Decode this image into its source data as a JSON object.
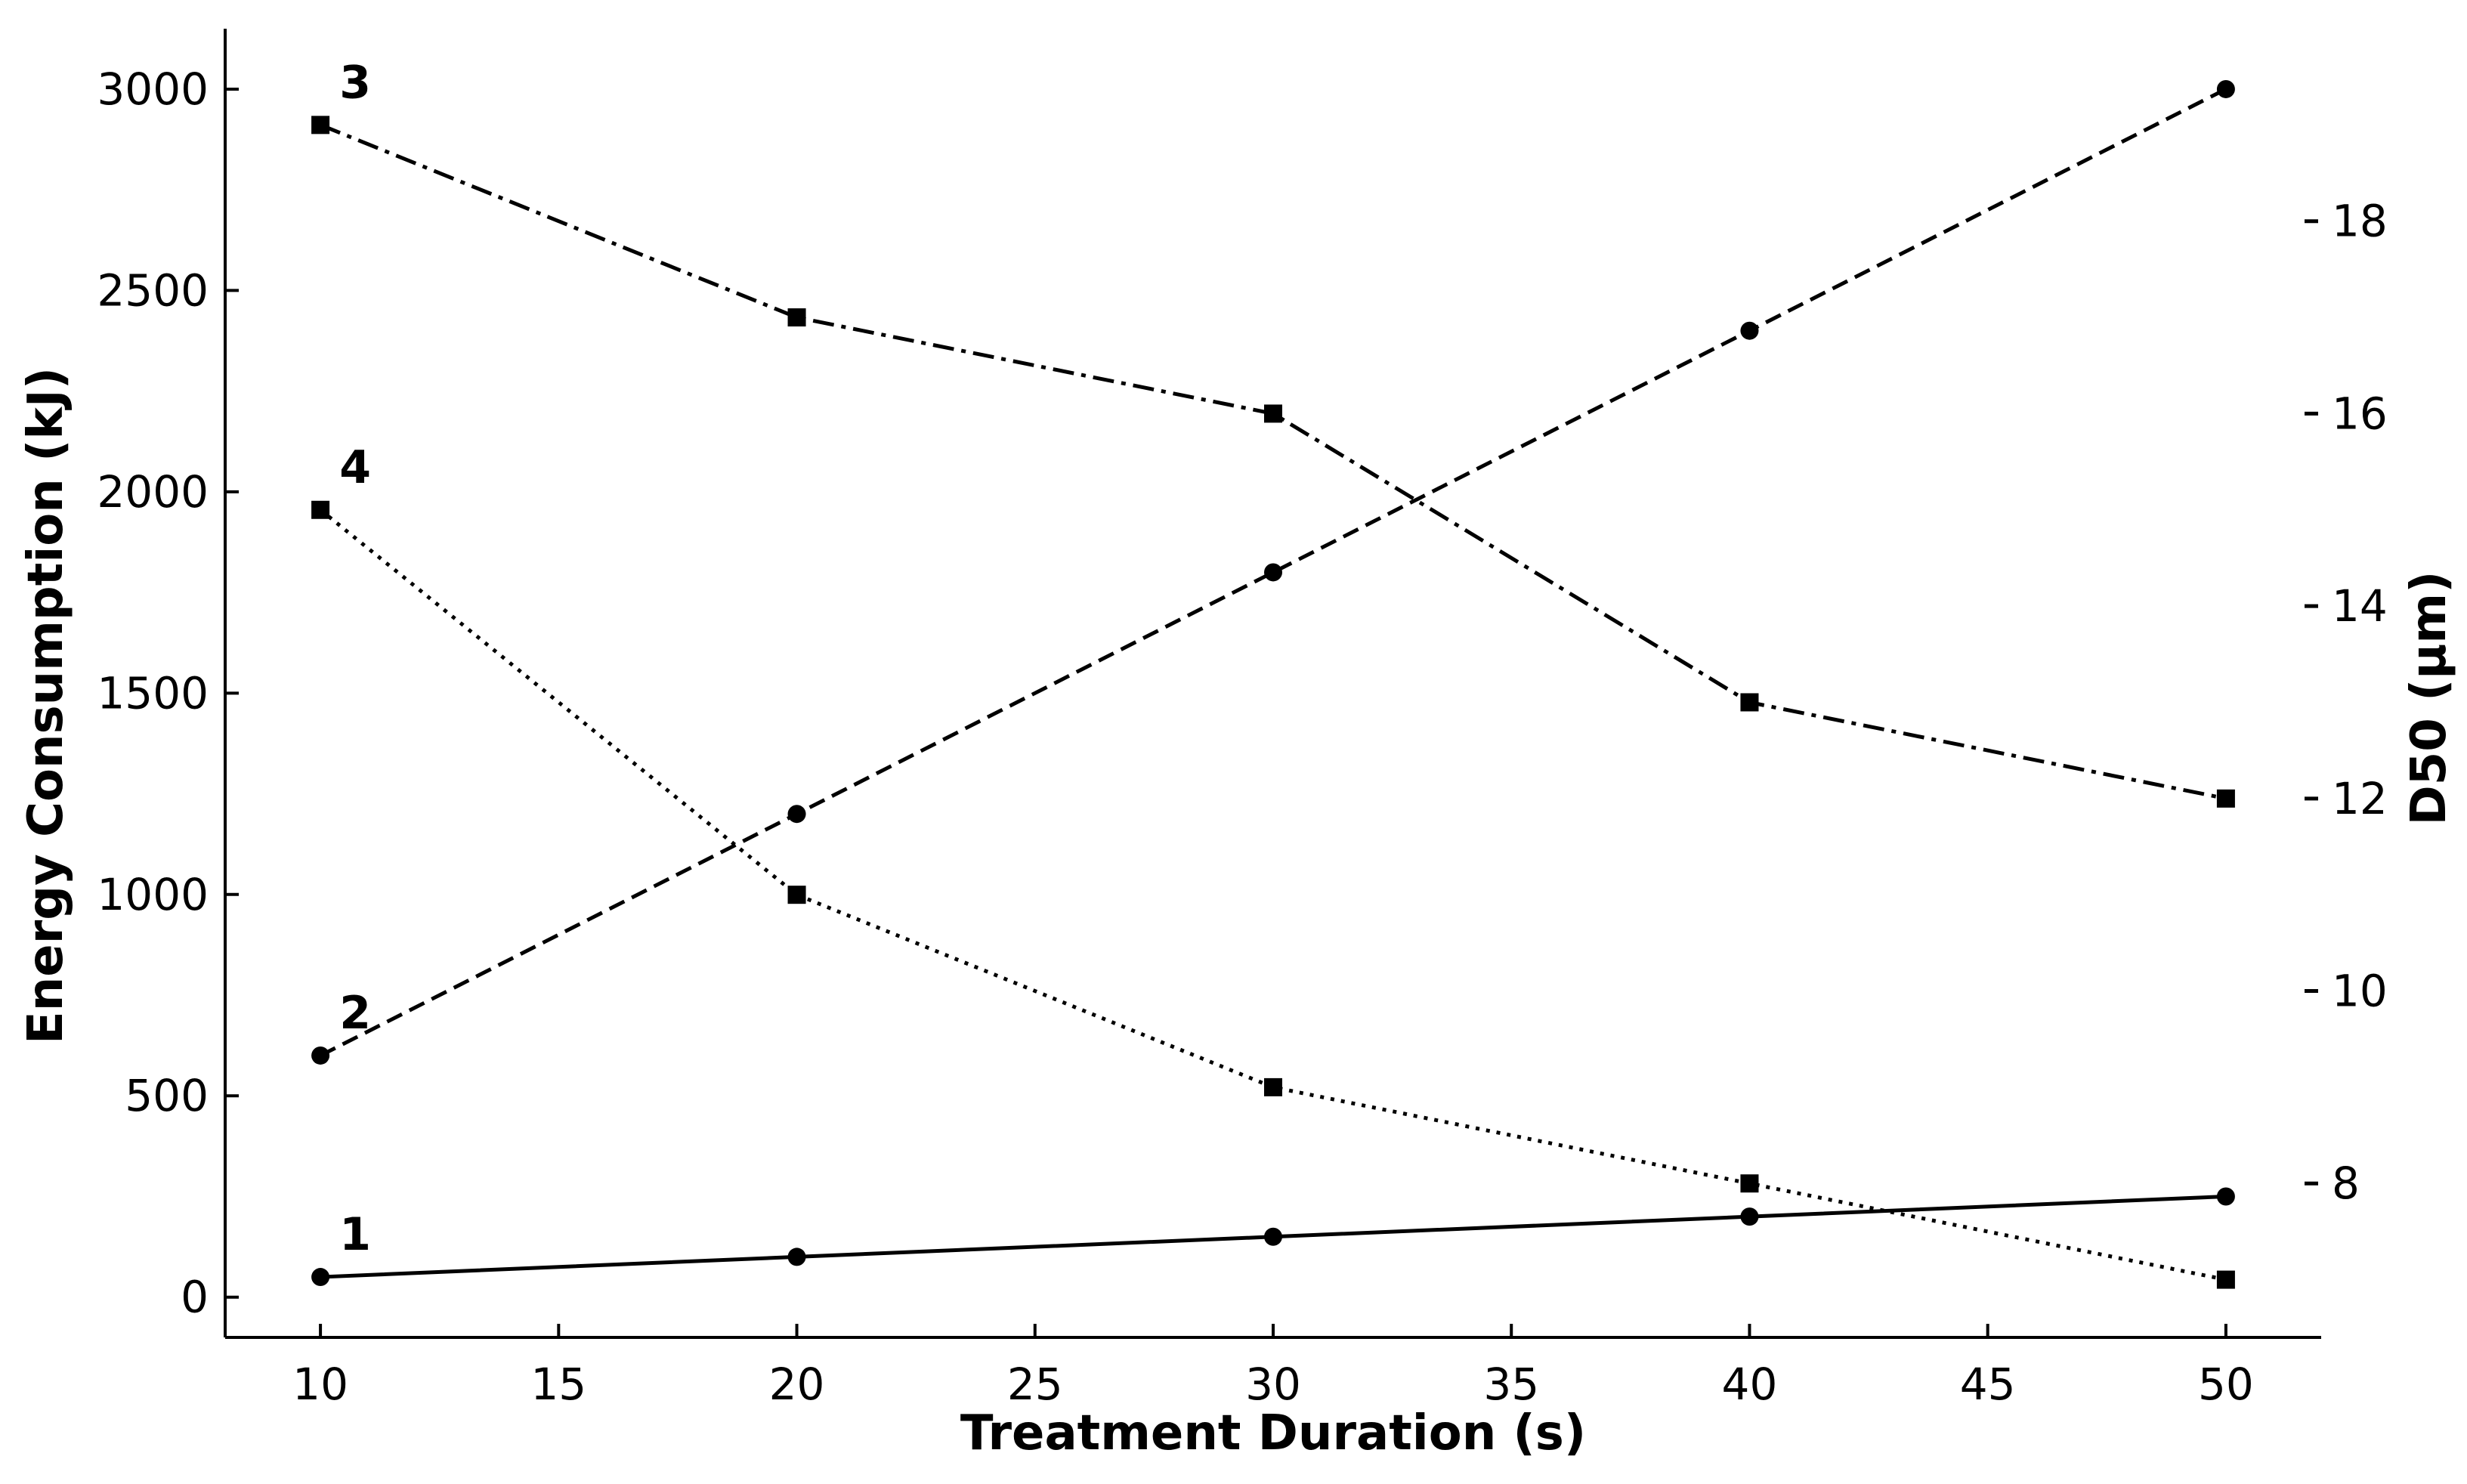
{
  "chart_data": {
    "type": "line",
    "title": "",
    "xlabel": "Treatment Duration (s)",
    "ylabel_left": "Energy Consumption (kJ)",
    "ylabel_right": "D50 (μm)",
    "x": [
      10,
      20,
      30,
      40,
      50
    ],
    "xlim": [
      8,
      52
    ],
    "xticks": [
      10,
      15,
      20,
      25,
      30,
      35,
      40,
      45,
      50
    ],
    "ylim_left": [
      -100,
      3150
    ],
    "yticks_left": [
      0,
      500,
      1000,
      1500,
      2000,
      2500,
      3000
    ],
    "ylim_right": [
      6.4,
      20.0
    ],
    "yticks_right": [
      8,
      10,
      12,
      14,
      16,
      18
    ],
    "grid": false,
    "series": [
      {
        "name": "1",
        "axis": "left",
        "marker": "circle",
        "linestyle": "solid",
        "values": [
          50,
          100,
          150,
          200,
          250
        ]
      },
      {
        "name": "2",
        "axis": "left",
        "marker": "circle",
        "linestyle": "dashed",
        "values": [
          600,
          1200,
          1800,
          2400,
          3000
        ]
      },
      {
        "name": "3",
        "axis": "right",
        "marker": "square",
        "linestyle": "dashdot",
        "values": [
          19,
          17,
          16,
          13,
          12
        ]
      },
      {
        "name": "4",
        "axis": "right",
        "marker": "square",
        "linestyle": "dotted",
        "values": [
          15,
          11,
          9,
          8,
          7
        ]
      }
    ]
  }
}
